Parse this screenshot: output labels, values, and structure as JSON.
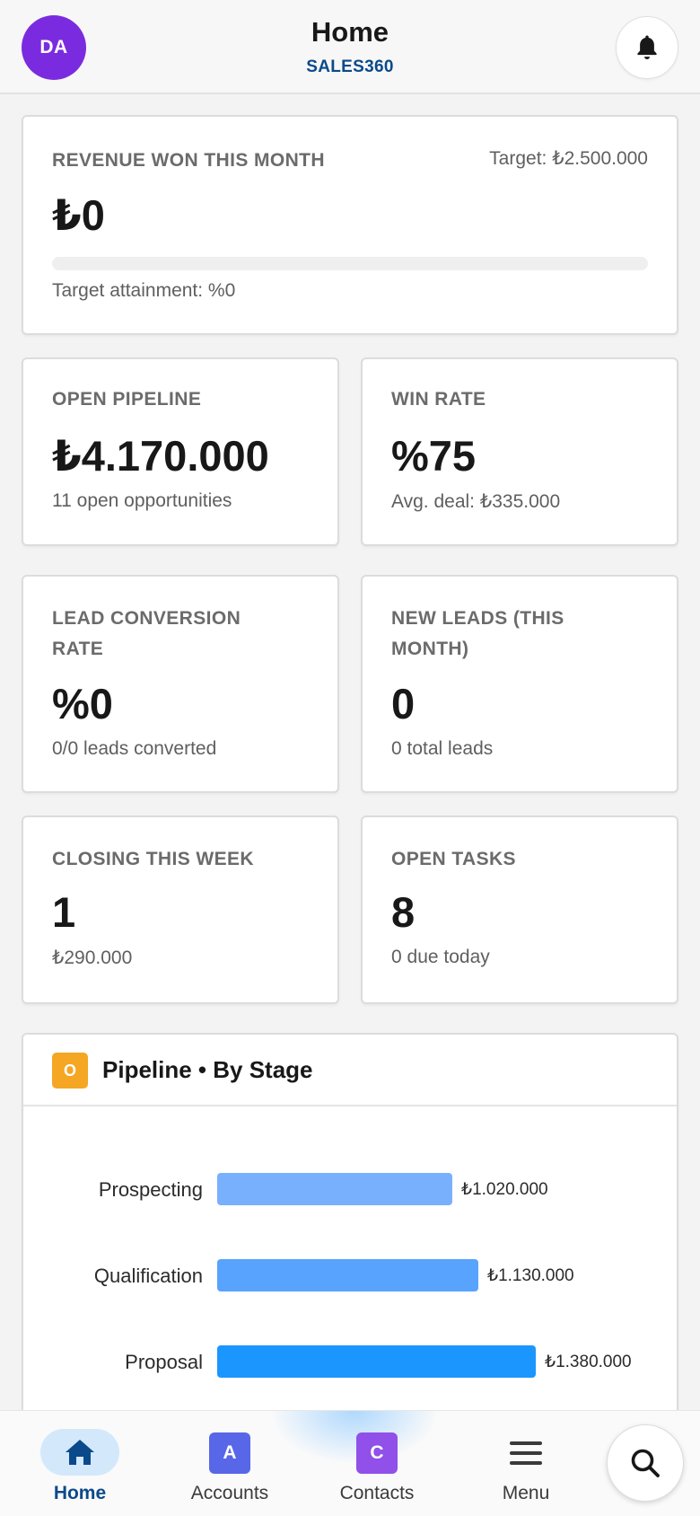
{
  "header": {
    "avatar_initials": "DA",
    "title": "Home",
    "subtitle": "SALES360",
    "bell_icon": "bell-icon"
  },
  "revenue": {
    "label": "REVENUE WON THIS MONTH",
    "target": "Target: ₺2.500.000",
    "value": "₺0",
    "progress_percent": 0,
    "attainment": "Target attainment: %0"
  },
  "kpis": {
    "open_pipeline": {
      "label": "OPEN PIPELINE",
      "value": "₺4.170.000",
      "sub": "11 open opportunities"
    },
    "win_rate": {
      "label": "WIN RATE",
      "value": "%75",
      "sub": "Avg. deal: ₺335.000"
    },
    "lead_conversion": {
      "label": "LEAD CONVERSION RATE",
      "value": "%0",
      "sub": "0/0 leads converted"
    },
    "new_leads": {
      "label": "NEW LEADS (THIS MONTH)",
      "value": "0",
      "sub": "0 total leads"
    },
    "closing_week": {
      "label": "CLOSING THIS WEEK",
      "value": "1",
      "sub": "₺290.000"
    },
    "open_tasks": {
      "label": "OPEN TASKS",
      "value": "8",
      "sub": "0 due today"
    }
  },
  "pipeline_chart": {
    "icon_letter": "O",
    "title": "Pipeline • By Stage"
  },
  "chart_data": {
    "type": "bar",
    "orientation": "horizontal",
    "title": "Pipeline • By Stage",
    "categories": [
      "Prospecting",
      "Qualification",
      "Proposal"
    ],
    "values": [
      1020000,
      1130000,
      1380000
    ],
    "value_labels": [
      "₺1.020.000",
      "₺1.130.000",
      "₺1.380.000"
    ],
    "colors": [
      "#78b0fd",
      "#57a3fd",
      "#1b96ff"
    ],
    "xlim": [
      0,
      1380000
    ]
  },
  "nav": {
    "home": "Home",
    "accounts": "Accounts",
    "accounts_badge": "A",
    "contacts": "Contacts",
    "contacts_badge": "C",
    "menu": "Menu"
  },
  "colors": {
    "brand": "#0b4a8a",
    "avatar": "#7b2bdf",
    "accounts_badge": "#5867e8",
    "contacts_badge": "#9050e9",
    "chart_icon": "#f5a623"
  }
}
